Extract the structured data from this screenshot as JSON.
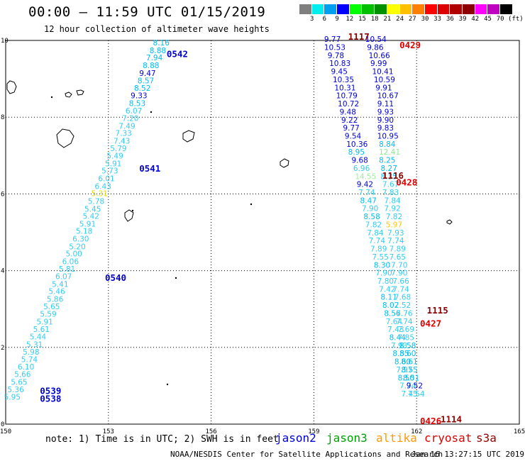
{
  "title": "00:00 – 11:59 UTC 01/15/2019",
  "subtitle": "12 hour collection of altimeter wave heights",
  "scale": {
    "unit_label": "(ft)",
    "labels": [
      "3",
      "6",
      "9",
      "12",
      "15",
      "18",
      "21",
      "24",
      "27",
      "30",
      "33",
      "36",
      "39",
      "42",
      "45",
      "70"
    ],
    "colors": [
      "#7f7f7f",
      "#00eeee",
      "#00a0f0",
      "#0000ff",
      "#00ff00",
      "#00c000",
      "#009000",
      "#ffff00",
      "#ffc000",
      "#ff8000",
      "#ff0000",
      "#dd0000",
      "#b00000",
      "#8b0000",
      "#ff00ff",
      "#c000c0",
      "#000000"
    ]
  },
  "axes": {
    "lon_ticks": [
      150,
      153,
      156,
      159,
      162,
      165
    ],
    "lat_ticks": [
      0,
      2,
      4,
      6,
      8,
      10
    ]
  },
  "note": "note: 1) Time is in UTC; 2) SWH is in feet",
  "legend": [
    {
      "name": "jason2",
      "color": "#0000dd"
    },
    {
      "name": "jason3",
      "color": "#00a000"
    },
    {
      "name": "altika",
      "color": "#ff9900"
    },
    {
      "name": "cryosat",
      "color": "#dd0000"
    },
    {
      "name": "s3a",
      "color": "#990000"
    }
  ],
  "credit": "NOAA/NESDIS Center for Satellite Applications and Research",
  "generated": "Jan 16 13:27:15 UTC 2019",
  "time_marks": [
    {
      "text": "0542",
      "lon": 154.7,
      "lat": 9.57,
      "color": "#0000cc"
    },
    {
      "text": "0541",
      "lon": 153.9,
      "lat": 6.58,
      "color": "#0000cc"
    },
    {
      "text": "0540",
      "lon": 152.9,
      "lat": 3.73,
      "color": "#0000cc"
    },
    {
      "text": "0539",
      "lon": 151.0,
      "lat": 0.79,
      "color": "#0000cc"
    },
    {
      "text": "0538",
      "lon": 151.0,
      "lat": 0.58,
      "color": "#0000cc"
    },
    {
      "text": "1117",
      "lon": 160.0,
      "lat": 10.02,
      "color": "#880000"
    },
    {
      "text": "0429",
      "lon": 161.5,
      "lat": 9.8,
      "color": "#dd0000"
    },
    {
      "text": "1116",
      "lon": 161.0,
      "lat": 6.4,
      "color": "#880000"
    },
    {
      "text": "0428",
      "lon": 161.4,
      "lat": 6.22,
      "color": "#dd0000"
    },
    {
      "text": "1115",
      "lon": 162.3,
      "lat": 2.88,
      "color": "#880000"
    },
    {
      "text": "0427",
      "lon": 162.1,
      "lat": 2.54,
      "color": "#dd0000"
    },
    {
      "text": "1114",
      "lon": 162.7,
      "lat": 0.05,
      "color": "#880000"
    },
    {
      "text": "0426",
      "lon": 162.1,
      "lat": 0.0,
      "color": "#dd0000"
    }
  ],
  "tracks": [
    {
      "name": "jason2 track 1",
      "color_default": "#00bbee",
      "points": [
        {
          "v": "8.16",
          "lon": 154.3,
          "lat": 9.87,
          "c": "#00bbee"
        },
        {
          "v": "8.88",
          "lon": 154.2,
          "lat": 9.67,
          "c": "#00bbee"
        },
        {
          "v": "7.94",
          "lon": 154.1,
          "lat": 9.48,
          "c": "#00bbee"
        },
        {
          "v": "8.88",
          "lon": 154.0,
          "lat": 9.28,
          "c": "#00bbee"
        },
        {
          "v": "9.47",
          "lon": 153.9,
          "lat": 9.08,
          "c": "#0000dd"
        },
        {
          "v": "8.57",
          "lon": 153.85,
          "lat": 8.88,
          "c": "#00bbee"
        },
        {
          "v": "8.52",
          "lon": 153.75,
          "lat": 8.69,
          "c": "#00bbee"
        },
        {
          "v": "9.33",
          "lon": 153.65,
          "lat": 8.49,
          "c": "#0000dd"
        },
        {
          "v": "8.53",
          "lon": 153.6,
          "lat": 8.29,
          "c": "#00bbee"
        },
        {
          "v": "6.07",
          "lon": 153.5,
          "lat": 8.1,
          "c": "#33ccee"
        },
        {
          "v": "7.20",
          "lon": 153.4,
          "lat": 7.9,
          "c": "#33ccee"
        },
        {
          "v": "7.49",
          "lon": 153.3,
          "lat": 7.7,
          "c": "#33ccee"
        },
        {
          "v": "7.33",
          "lon": 153.2,
          "lat": 7.51,
          "c": "#33ccee"
        },
        {
          "v": "7.43",
          "lon": 153.15,
          "lat": 7.31,
          "c": "#33ccee"
        },
        {
          "v": "5.79",
          "lon": 153.05,
          "lat": 7.12,
          "c": "#33ccee"
        },
        {
          "v": "5.49",
          "lon": 152.95,
          "lat": 6.92,
          "c": "#33ccee"
        },
        {
          "v": "5.91",
          "lon": 152.9,
          "lat": 6.72,
          "c": "#33ccee"
        },
        {
          "v": "5.73",
          "lon": 152.8,
          "lat": 6.53,
          "c": "#33ccee"
        },
        {
          "v": "6.01",
          "lon": 152.7,
          "lat": 6.33,
          "c": "#33ccee"
        },
        {
          "v": "6.43",
          "lon": 152.6,
          "lat": 6.13,
          "c": "#33ccee"
        },
        {
          "v": "5.31",
          "lon": 152.5,
          "lat": 5.94,
          "c": "#dddd00"
        },
        {
          "v": "5.78",
          "lon": 152.4,
          "lat": 5.74,
          "c": "#33ccee"
        },
        {
          "v": "5.45",
          "lon": 152.3,
          "lat": 5.54,
          "c": "#33ccee"
        },
        {
          "v": "5.42",
          "lon": 152.25,
          "lat": 5.35,
          "c": "#33ccee"
        },
        {
          "v": "5.91",
          "lon": 152.15,
          "lat": 5.15,
          "c": "#33ccee"
        },
        {
          "v": "5.18",
          "lon": 152.05,
          "lat": 4.96,
          "c": "#33ccee"
        },
        {
          "v": "6.30",
          "lon": 151.95,
          "lat": 4.76,
          "c": "#33ccee"
        },
        {
          "v": "5.20",
          "lon": 151.85,
          "lat": 4.56,
          "c": "#33ccee"
        },
        {
          "v": "5.00",
          "lon": 151.75,
          "lat": 4.37,
          "c": "#33ccee"
        },
        {
          "v": "6.06",
          "lon": 151.65,
          "lat": 4.17,
          "c": "#33ccee"
        },
        {
          "v": "5.81",
          "lon": 151.55,
          "lat": 3.97,
          "c": "#33ccee"
        },
        {
          "v": "6.07",
          "lon": 151.45,
          "lat": 3.78,
          "c": "#33ccee"
        },
        {
          "v": "5.41",
          "lon": 151.35,
          "lat": 3.58,
          "c": "#33ccee"
        },
        {
          "v": "5.46",
          "lon": 151.25,
          "lat": 3.39,
          "c": "#33ccee"
        },
        {
          "v": "5.86",
          "lon": 151.2,
          "lat": 3.19,
          "c": "#33ccee"
        },
        {
          "v": "5.65",
          "lon": 151.1,
          "lat": 2.99,
          "c": "#33ccee"
        },
        {
          "v": "5.59",
          "lon": 151.0,
          "lat": 2.8,
          "c": "#33ccee"
        },
        {
          "v": "5.91",
          "lon": 150.9,
          "lat": 2.6,
          "c": "#33ccee"
        },
        {
          "v": "5.61",
          "lon": 150.8,
          "lat": 2.4,
          "c": "#33ccee"
        },
        {
          "v": "5.44",
          "lon": 150.7,
          "lat": 2.21,
          "c": "#33ccee"
        },
        {
          "v": "5.31",
          "lon": 150.6,
          "lat": 2.01,
          "c": "#33ccee"
        },
        {
          "v": "5.98",
          "lon": 150.5,
          "lat": 1.81,
          "c": "#33ccee"
        },
        {
          "v": "5.74",
          "lon": 150.45,
          "lat": 1.62,
          "c": "#33ccee"
        },
        {
          "v": "6.10",
          "lon": 150.35,
          "lat": 1.42,
          "c": "#33ccee"
        },
        {
          "v": "5.66",
          "lon": 150.25,
          "lat": 1.23,
          "c": "#33ccee"
        },
        {
          "v": "5.65",
          "lon": 150.15,
          "lat": 1.03,
          "c": "#33ccee"
        },
        {
          "v": "5.36",
          "lon": 150.05,
          "lat": 0.83,
          "c": "#33ccee"
        },
        {
          "v": "5.95",
          "lon": 149.95,
          "lat": 0.64,
          "c": "#33ccee"
        }
      ]
    },
    {
      "name": "cryosat track A",
      "color_default": "#0000dd",
      "points": [
        {
          "v": "9.77",
          "lon": 159.3,
          "lat": 9.96,
          "c": "#0000dd"
        },
        {
          "v": "10.53",
          "lon": 159.3,
          "lat": 9.75,
          "c": "#0000dd"
        },
        {
          "v": "9.78",
          "lon": 159.4,
          "lat": 9.54,
          "c": "#0000dd"
        },
        {
          "v": "10.83",
          "lon": 159.45,
          "lat": 9.33,
          "c": "#0000dd"
        },
        {
          "v": "9.45",
          "lon": 159.5,
          "lat": 9.12,
          "c": "#0000dd"
        },
        {
          "v": "10.35",
          "lon": 159.55,
          "lat": 8.91,
          "c": "#0000dd"
        },
        {
          "v": "10.31",
          "lon": 159.6,
          "lat": 8.7,
          "c": "#0000dd"
        },
        {
          "v": "10.79",
          "lon": 159.65,
          "lat": 8.49,
          "c": "#0000dd"
        },
        {
          "v": "10.72",
          "lon": 159.7,
          "lat": 8.28,
          "c": "#0000dd"
        },
        {
          "v": "9.48",
          "lon": 159.75,
          "lat": 8.07,
          "c": "#0000dd"
        },
        {
          "v": "9.22",
          "lon": 159.8,
          "lat": 7.86,
          "c": "#0000dd"
        },
        {
          "v": "9.77",
          "lon": 159.85,
          "lat": 7.65,
          "c": "#0000dd"
        },
        {
          "v": "9.54",
          "lon": 159.9,
          "lat": 7.44,
          "c": "#0000dd"
        },
        {
          "v": "10.36",
          "lon": 159.95,
          "lat": 7.23,
          "c": "#0000dd"
        },
        {
          "v": "8.95",
          "lon": 160.0,
          "lat": 7.02,
          "c": "#00bbee"
        },
        {
          "v": "9.68",
          "lon": 160.1,
          "lat": 6.81,
          "c": "#0000dd"
        },
        {
          "v": "6.96",
          "lon": 160.15,
          "lat": 6.6,
          "c": "#33ccee"
        },
        {
          "v": "14.55",
          "lon": 160.2,
          "lat": 6.39,
          "c": "#99ee99"
        },
        {
          "v": "9.42",
          "lon": 160.25,
          "lat": 6.18,
          "c": "#0000dd"
        },
        {
          "v": "7.74",
          "lon": 160.3,
          "lat": 5.97,
          "c": "#33ccee"
        },
        {
          "v": "8.47",
          "lon": 160.35,
          "lat": 5.76,
          "c": "#00bbee"
        },
        {
          "v": "7.90",
          "lon": 160.4,
          "lat": 5.55,
          "c": "#33ccee"
        },
        {
          "v": "8.58",
          "lon": 160.45,
          "lat": 5.34,
          "c": "#00bbee"
        },
        {
          "v": "7.82",
          "lon": 160.5,
          "lat": 5.13,
          "c": "#33ccee"
        },
        {
          "v": "7.84",
          "lon": 160.55,
          "lat": 4.92,
          "c": "#33ccee"
        },
        {
          "v": "7.74",
          "lon": 160.6,
          "lat": 4.71,
          "c": "#33ccee"
        },
        {
          "v": "7.89",
          "lon": 160.65,
          "lat": 4.5,
          "c": "#33ccee"
        },
        {
          "v": "7.55",
          "lon": 160.7,
          "lat": 4.29,
          "c": "#33ccee"
        },
        {
          "v": "8.30",
          "lon": 160.75,
          "lat": 4.08,
          "c": "#00bbee"
        },
        {
          "v": "7.90",
          "lon": 160.8,
          "lat": 3.87,
          "c": "#33ccee"
        },
        {
          "v": "7.80",
          "lon": 160.85,
          "lat": 3.66,
          "c": "#33ccee"
        },
        {
          "v": "7.42",
          "lon": 160.9,
          "lat": 3.45,
          "c": "#33ccee"
        },
        {
          "v": "8.11",
          "lon": 160.95,
          "lat": 3.24,
          "c": "#00bbee"
        },
        {
          "v": "8.02",
          "lon": 161.0,
          "lat": 3.03,
          "c": "#00bbee"
        },
        {
          "v": "8.56",
          "lon": 161.05,
          "lat": 2.82,
          "c": "#00bbee"
        },
        {
          "v": "7.64",
          "lon": 161.1,
          "lat": 2.61,
          "c": "#33ccee"
        },
        {
          "v": "7.43",
          "lon": 161.15,
          "lat": 2.4,
          "c": "#33ccee"
        },
        {
          "v": "8.44",
          "lon": 161.2,
          "lat": 2.19,
          "c": "#00bbee"
        },
        {
          "v": "7.93",
          "lon": 161.25,
          "lat": 1.98,
          "c": "#33ccee"
        },
        {
          "v": "8.55",
          "lon": 161.3,
          "lat": 1.77,
          "c": "#00bbee"
        },
        {
          "v": "8.60",
          "lon": 161.35,
          "lat": 1.56,
          "c": "#00bbee"
        },
        {
          "v": "7.97",
          "lon": 161.4,
          "lat": 1.35,
          "c": "#33ccee"
        },
        {
          "v": "8.50",
          "lon": 161.45,
          "lat": 1.14,
          "c": "#00bbee"
        },
        {
          "v": "7.74",
          "lon": 161.5,
          "lat": 0.93,
          "c": "#33ccee"
        },
        {
          "v": "7.45",
          "lon": 161.55,
          "lat": 0.72,
          "c": "#33ccee"
        }
      ]
    },
    {
      "name": "cryosat track B",
      "color_default": "#0000dd",
      "points": [
        {
          "v": "10.54",
          "lon": 160.5,
          "lat": 9.96,
          "c": "#0000dd"
        },
        {
          "v": "9.86",
          "lon": 160.55,
          "lat": 9.75,
          "c": "#0000dd"
        },
        {
          "v": "10.66",
          "lon": 160.6,
          "lat": 9.54,
          "c": "#0000dd"
        },
        {
          "v": "9.99",
          "lon": 160.65,
          "lat": 9.33,
          "c": "#0000dd"
        },
        {
          "v": "10.41",
          "lon": 160.7,
          "lat": 9.12,
          "c": "#0000dd"
        },
        {
          "v": "10.59",
          "lon": 160.75,
          "lat": 8.91,
          "c": "#0000dd"
        },
        {
          "v": "9.91",
          "lon": 160.8,
          "lat": 8.7,
          "c": "#0000dd"
        },
        {
          "v": "10.67",
          "lon": 160.85,
          "lat": 8.49,
          "c": "#0000dd"
        },
        {
          "v": "9.11",
          "lon": 160.85,
          "lat": 8.28,
          "c": "#0000dd"
        },
        {
          "v": "9.93",
          "lon": 160.85,
          "lat": 8.07,
          "c": "#0000dd"
        },
        {
          "v": "9.90",
          "lon": 160.85,
          "lat": 7.86,
          "c": "#0000dd"
        },
        {
          "v": "9.83",
          "lon": 160.85,
          "lat": 7.65,
          "c": "#0000dd"
        },
        {
          "v": "10.95",
          "lon": 160.85,
          "lat": 7.44,
          "c": "#0000dd"
        },
        {
          "v": "8.84",
          "lon": 160.9,
          "lat": 7.23,
          "c": "#00bbee"
        },
        {
          "v": "12.41",
          "lon": 160.9,
          "lat": 7.02,
          "c": "#88ee88"
        },
        {
          "v": "8.25",
          "lon": 160.9,
          "lat": 6.81,
          "c": "#00bbee"
        },
        {
          "v": "8.27",
          "lon": 160.95,
          "lat": 6.6,
          "c": "#00bbee"
        },
        {
          "v": "8.35",
          "lon": 160.95,
          "lat": 6.39,
          "c": "#00bbee"
        },
        {
          "v": "7.67",
          "lon": 161.0,
          "lat": 6.18,
          "c": "#33ccee"
        },
        {
          "v": "7.83",
          "lon": 161.0,
          "lat": 5.97,
          "c": "#33ccee"
        },
        {
          "v": "7.84",
          "lon": 161.05,
          "lat": 5.76,
          "c": "#33ccee"
        },
        {
          "v": "7.92",
          "lon": 161.05,
          "lat": 5.55,
          "c": "#33ccee"
        },
        {
          "v": "7.82",
          "lon": 161.1,
          "lat": 5.34,
          "c": "#33ccee"
        },
        {
          "v": "5.97",
          "lon": 161.1,
          "lat": 5.13,
          "c": "#ffcc00"
        },
        {
          "v": "7.93",
          "lon": 161.15,
          "lat": 4.92,
          "c": "#33ccee"
        },
        {
          "v": "7.74",
          "lon": 161.15,
          "lat": 4.71,
          "c": "#33ccee"
        },
        {
          "v": "7.89",
          "lon": 161.2,
          "lat": 4.5,
          "c": "#33ccee"
        },
        {
          "v": "7.65",
          "lon": 161.2,
          "lat": 4.29,
          "c": "#33ccee"
        },
        {
          "v": "7.70",
          "lon": 161.25,
          "lat": 4.08,
          "c": "#33ccee"
        },
        {
          "v": "7.90",
          "lon": 161.25,
          "lat": 3.87,
          "c": "#33ccee"
        },
        {
          "v": "7.66",
          "lon": 161.3,
          "lat": 3.66,
          "c": "#33ccee"
        },
        {
          "v": "7.74",
          "lon": 161.3,
          "lat": 3.45,
          "c": "#33ccee"
        },
        {
          "v": "7.68",
          "lon": 161.35,
          "lat": 3.24,
          "c": "#33ccee"
        },
        {
          "v": "7.52",
          "lon": 161.35,
          "lat": 3.03,
          "c": "#33ccee"
        },
        {
          "v": "7.76",
          "lon": 161.4,
          "lat": 2.82,
          "c": "#33ccee"
        },
        {
          "v": "7.74",
          "lon": 161.4,
          "lat": 2.61,
          "c": "#33ccee"
        },
        {
          "v": "7.69",
          "lon": 161.45,
          "lat": 2.4,
          "c": "#33ccee"
        },
        {
          "v": "7.85",
          "lon": 161.45,
          "lat": 2.19,
          "c": "#33ccee"
        },
        {
          "v": "8.58",
          "lon": 161.5,
          "lat": 1.98,
          "c": "#00bbee"
        },
        {
          "v": "8.60",
          "lon": 161.5,
          "lat": 1.77,
          "c": "#00bbee"
        },
        {
          "v": "8.61",
          "lon": 161.55,
          "lat": 1.56,
          "c": "#00bbee"
        },
        {
          "v": "8.55",
          "lon": 161.55,
          "lat": 1.35,
          "c": "#00bbee"
        },
        {
          "v": "8.51",
          "lon": 161.6,
          "lat": 1.14,
          "c": "#00bbee"
        },
        {
          "v": "9.52",
          "lon": 161.7,
          "lat": 0.93,
          "c": "#0000dd"
        },
        {
          "v": "7.54",
          "lon": 161.75,
          "lat": 0.72,
          "c": "#33ccee"
        }
      ]
    }
  ]
}
